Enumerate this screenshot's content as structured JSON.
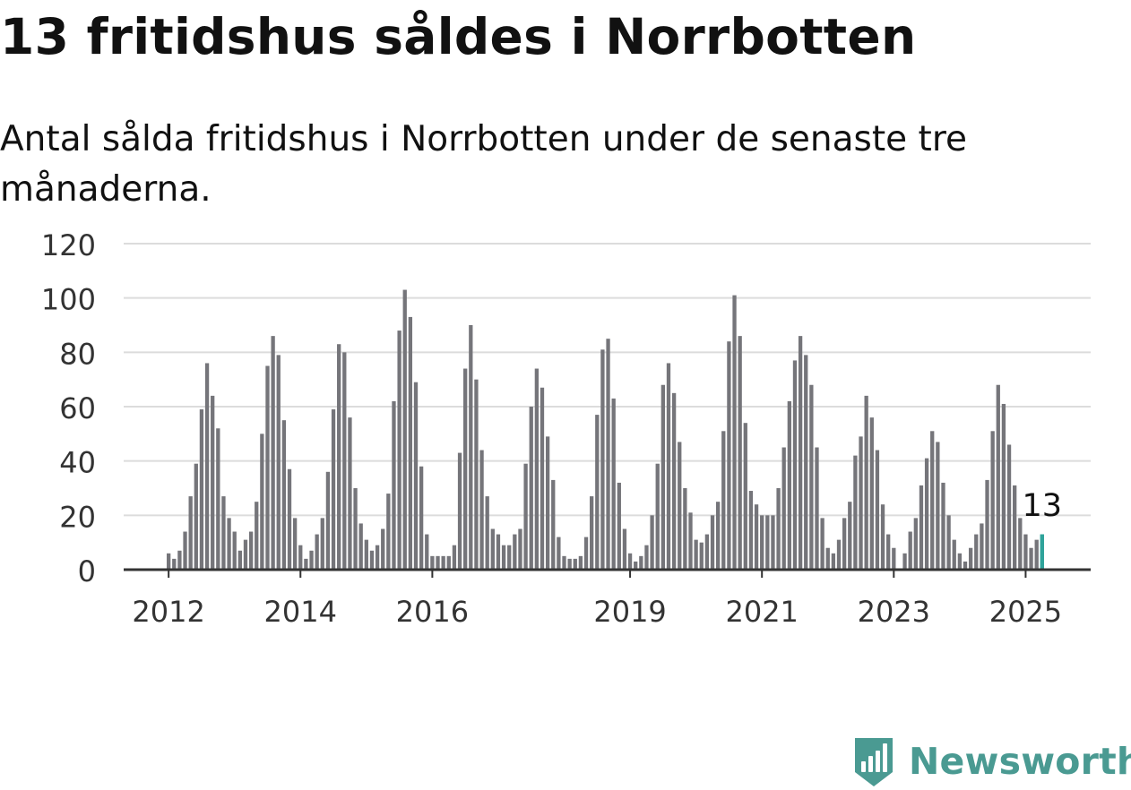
{
  "title": "13 fritidshus såldes i Norrbotten",
  "subtitle": "Antal sålda fritidshus i Norrbotten under de senaste tre månaderna.",
  "colors": {
    "bars": "#75757a",
    "highlight": "#2fa39a",
    "grid": "#dcdcdc",
    "axis": "#333333",
    "brand": "#4a9a92"
  },
  "brand": {
    "name": "Newsworthy",
    "logo_icon": "newsworthy-bar-chart-icon"
  },
  "chart_data": {
    "type": "bar",
    "title": "13 fritidshus såldes i Norrbotten",
    "subtitle": "Antal sålda fritidshus i Norrbotten under de senaste tre månaderna.",
    "xlabel": "",
    "ylabel": "",
    "ylim": [
      0,
      120
    ],
    "yticks": [
      0,
      20,
      40,
      60,
      80,
      100,
      120
    ],
    "grid": true,
    "legend": "none",
    "x_axis": {
      "ticks": [
        {
          "label": "2012",
          "index": 0
        },
        {
          "label": "2014",
          "index": 24
        },
        {
          "label": "2016",
          "index": 48
        },
        {
          "label": "2019",
          "index": 84
        },
        {
          "label": "2021",
          "index": 108
        },
        {
          "label": "2023",
          "index": 132
        },
        {
          "label": "2025",
          "index": 156
        }
      ]
    },
    "values": [
      6,
      4,
      7,
      14,
      27,
      39,
      59,
      76,
      64,
      52,
      27,
      19,
      14,
      7,
      11,
      14,
      25,
      50,
      75,
      86,
      79,
      55,
      37,
      19,
      9,
      4,
      7,
      13,
      19,
      36,
      59,
      83,
      80,
      56,
      30,
      17,
      11,
      7,
      9,
      15,
      28,
      62,
      88,
      103,
      93,
      69,
      38,
      13,
      5,
      5,
      5,
      5,
      9,
      43,
      74,
      90,
      70,
      44,
      27,
      15,
      13,
      9,
      9,
      13,
      15,
      39,
      60,
      74,
      67,
      49,
      33,
      12,
      5,
      4,
      4,
      5,
      12,
      27,
      57,
      81,
      85,
      63,
      32,
      15,
      6,
      3,
      5,
      9,
      20,
      39,
      68,
      76,
      65,
      47,
      30,
      21,
      11,
      10,
      13,
      20,
      25,
      51,
      84,
      101,
      86,
      54,
      29,
      24,
      20,
      20,
      20,
      30,
      45,
      62,
      77,
      86,
      79,
      68,
      45,
      19,
      8,
      6,
      11,
      19,
      25,
      42,
      49,
      64,
      56,
      44,
      24,
      13,
      8,
      0,
      6,
      14,
      19,
      31,
      41,
      51,
      47,
      32,
      20,
      11,
      6,
      3,
      8,
      13,
      17,
      33,
      51,
      68,
      61,
      46,
      31,
      19,
      13,
      8,
      11,
      13
    ],
    "highlight": {
      "index": 159,
      "value": 13,
      "label": "13"
    }
  }
}
